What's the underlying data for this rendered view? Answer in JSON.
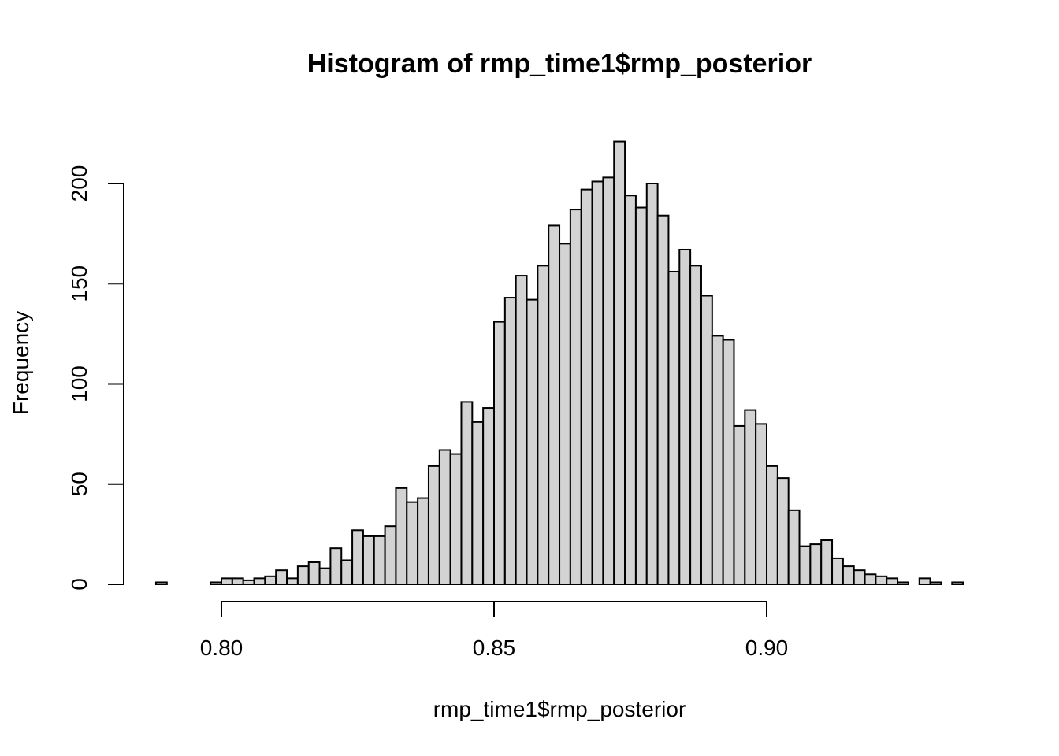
{
  "chart_data": {
    "type": "bar",
    "title": "Histogram of rmp_time1$rmp_posterior",
    "xlabel": "rmp_time1$rmp_posterior",
    "ylabel": "Frequency",
    "x_ticks": [
      "0.80",
      "0.85",
      "0.90"
    ],
    "x_tick_values": [
      0.8,
      0.85,
      0.9
    ],
    "y_ticks": [
      "0",
      "50",
      "100",
      "150",
      "200"
    ],
    "y_tick_values": [
      0,
      50,
      100,
      150,
      200
    ],
    "xlim": [
      0.788,
      0.936
    ],
    "ylim": [
      0,
      221
    ],
    "bin_start": 0.788,
    "bin_width": 0.002,
    "values": [
      1,
      0,
      0,
      0,
      0,
      1,
      3,
      3,
      2,
      3,
      4,
      7,
      3,
      9,
      11,
      8,
      18,
      12,
      27,
      24,
      24,
      29,
      48,
      41,
      43,
      59,
      67,
      65,
      91,
      81,
      88,
      131,
      143,
      154,
      142,
      159,
      179,
      170,
      187,
      197,
      201,
      203,
      221,
      194,
      188,
      200,
      184,
      156,
      167,
      159,
      144,
      124,
      122,
      79,
      87,
      80,
      59,
      53,
      37,
      19,
      20,
      22,
      13,
      9,
      7,
      5,
      4,
      3,
      1,
      0,
      3,
      1,
      0,
      1
    ],
    "bar_color": "#d3d3d3",
    "border_color": "#000000",
    "grid": false,
    "legend": "none"
  }
}
